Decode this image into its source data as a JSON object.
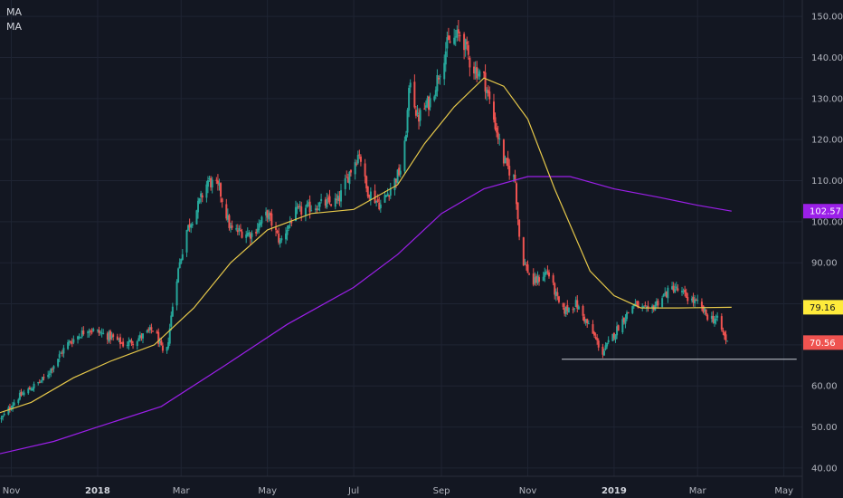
{
  "legend": {
    "items": [
      "MA",
      "MA"
    ]
  },
  "colors": {
    "background": "#131722",
    "grid": "#1f2433",
    "up": "#26a69a",
    "down": "#ef5350",
    "ma_short": "#e6c84a",
    "ma_long": "#9b1fe8",
    "support_line": "#c9ccd4",
    "axis_text": "#b2b5be"
  },
  "chart_data": {
    "type": "candlestick",
    "x_range": [
      "2017-10-24",
      "2019-05-14"
    ],
    "y_range": [
      38,
      154
    ],
    "y_ticks": [
      40,
      50,
      60,
      70,
      80,
      90,
      100,
      110,
      120,
      130,
      140,
      150
    ],
    "y_tick_labels": [
      "40.00",
      "50.00",
      "60.00",
      "70.00",
      "80.00",
      "90.00",
      "100.00",
      "110.00",
      "120.00",
      "130.00",
      "140.00",
      "150.00"
    ],
    "x_ticks": [
      {
        "label": "Nov",
        "date": "2017-11-01",
        "bold": false
      },
      {
        "label": "2018",
        "date": "2018-01-01",
        "bold": true
      },
      {
        "label": "Mar",
        "date": "2018-03-01",
        "bold": false
      },
      {
        "label": "May",
        "date": "2018-05-01",
        "bold": false
      },
      {
        "label": "Jul",
        "date": "2018-07-01",
        "bold": false
      },
      {
        "label": "Sep",
        "date": "2018-09-01",
        "bold": false
      },
      {
        "label": "Nov",
        "date": "2018-11-01",
        "bold": false
      },
      {
        "label": "2019",
        "date": "2019-01-01",
        "bold": true
      },
      {
        "label": "Mar",
        "date": "2019-03-01",
        "bold": false
      },
      {
        "label": "May",
        "date": "2019-05-01",
        "bold": false
      }
    ],
    "price_anchors": [
      [
        "2017-10-25",
        52
      ],
      [
        "2017-11-05",
        57
      ],
      [
        "2017-11-25",
        62
      ],
      [
        "2017-12-10",
        70
      ],
      [
        "2017-12-25",
        74
      ],
      [
        "2018-01-10",
        72
      ],
      [
        "2018-01-20",
        70
      ],
      [
        "2018-02-01",
        72
      ],
      [
        "2018-02-10",
        74
      ],
      [
        "2018-02-18",
        66
      ],
      [
        "2018-02-25",
        85
      ],
      [
        "2018-03-05",
        98
      ],
      [
        "2018-03-12",
        103
      ],
      [
        "2018-03-20",
        110
      ],
      [
        "2018-03-28",
        108
      ],
      [
        "2018-04-05",
        98
      ],
      [
        "2018-04-20",
        97
      ],
      [
        "2018-05-01",
        102
      ],
      [
        "2018-05-10",
        95
      ],
      [
        "2018-05-20",
        102
      ],
      [
        "2018-06-05",
        104
      ],
      [
        "2018-06-20",
        105
      ],
      [
        "2018-06-28",
        112
      ],
      [
        "2018-07-05",
        117
      ],
      [
        "2018-07-10",
        108
      ],
      [
        "2018-07-20",
        104
      ],
      [
        "2018-07-30",
        110
      ],
      [
        "2018-08-05",
        114
      ],
      [
        "2018-08-10",
        135
      ],
      [
        "2018-08-15",
        125
      ],
      [
        "2018-08-25",
        130
      ],
      [
        "2018-09-05",
        143
      ],
      [
        "2018-09-15",
        146
      ],
      [
        "2018-09-22",
        138
      ],
      [
        "2018-10-01",
        135
      ],
      [
        "2018-10-08",
        125
      ],
      [
        "2018-10-15",
        115
      ],
      [
        "2018-10-23",
        110
      ],
      [
        "2018-10-27",
        92
      ],
      [
        "2018-11-05",
        85
      ],
      [
        "2018-11-15",
        88
      ],
      [
        "2018-11-25",
        78
      ],
      [
        "2018-12-05",
        80
      ],
      [
        "2018-12-15",
        74
      ],
      [
        "2018-12-24",
        68
      ],
      [
        "2019-01-05",
        75
      ],
      [
        "2019-01-15",
        80
      ],
      [
        "2019-01-25",
        78
      ],
      [
        "2019-02-05",
        82
      ],
      [
        "2019-02-12",
        84
      ],
      [
        "2019-02-20",
        82
      ],
      [
        "2019-03-01",
        80
      ],
      [
        "2019-03-08",
        77
      ],
      [
        "2019-03-15",
        76
      ],
      [
        "2019-03-22",
        70.56
      ]
    ],
    "ma_short": {
      "name": "MA",
      "points": [
        [
          "2017-10-24",
          53.5
        ],
        [
          "2017-11-15",
          56
        ],
        [
          "2017-12-15",
          62
        ],
        [
          "2018-01-10",
          66
        ],
        [
          "2018-02-10",
          70
        ],
        [
          "2018-03-10",
          79
        ],
        [
          "2018-04-05",
          90
        ],
        [
          "2018-05-01",
          98
        ],
        [
          "2018-06-01",
          102
        ],
        [
          "2018-07-01",
          103
        ],
        [
          "2018-08-01",
          109
        ],
        [
          "2018-08-20",
          119
        ],
        [
          "2018-09-10",
          128
        ],
        [
          "2018-10-01",
          135
        ],
        [
          "2018-10-15",
          133
        ],
        [
          "2018-11-01",
          125
        ],
        [
          "2018-11-20",
          108
        ],
        [
          "2018-12-15",
          88
        ],
        [
          "2019-01-01",
          82
        ],
        [
          "2019-01-20",
          79
        ],
        [
          "2019-02-15",
          79
        ],
        [
          "2019-03-25",
          79.16
        ]
      ]
    },
    "ma_long": {
      "name": "MA",
      "points": [
        [
          "2017-10-24",
          43.5
        ],
        [
          "2017-12-01",
          46.5
        ],
        [
          "2018-01-01",
          50
        ],
        [
          "2018-02-15",
          55
        ],
        [
          "2018-04-01",
          65
        ],
        [
          "2018-05-15",
          75
        ],
        [
          "2018-07-01",
          84
        ],
        [
          "2018-08-01",
          92
        ],
        [
          "2018-09-01",
          102
        ],
        [
          "2018-10-01",
          108
        ],
        [
          "2018-11-01",
          111
        ],
        [
          "2018-12-01",
          111
        ],
        [
          "2019-01-01",
          108
        ],
        [
          "2019-02-01",
          106
        ],
        [
          "2019-03-01",
          104
        ],
        [
          "2019-03-25",
          102.57
        ]
      ]
    },
    "support_line": {
      "start": "2018-11-25",
      "end": "2019-05-10",
      "value": 66.5
    },
    "price_tags": [
      {
        "value": 102.57,
        "label": "102.57",
        "color": "#9b1fe8",
        "text_color": "#ffffff"
      },
      {
        "value": 79.16,
        "label": "79.16",
        "color": "#ffeb3b",
        "text_color": "#131722"
      },
      {
        "value": 70.56,
        "label": "70.56",
        "color": "#ef5350",
        "text_color": "#ffffff"
      }
    ],
    "grid": true
  }
}
